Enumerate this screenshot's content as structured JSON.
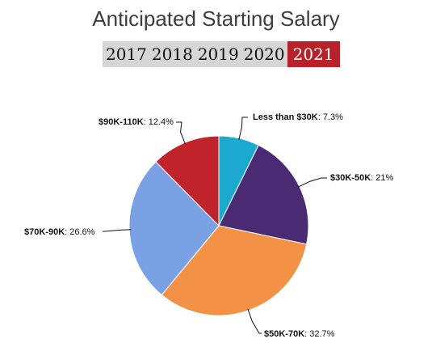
{
  "header": {
    "title": "Anticipated Starting Salary"
  },
  "year_tabs": [
    {
      "label": "2017",
      "active": false
    },
    {
      "label": "2018",
      "active": false
    },
    {
      "label": "2019",
      "active": false
    },
    {
      "label": "2020",
      "active": false
    },
    {
      "label": "2021",
      "active": true
    }
  ],
  "chart_data": {
    "type": "pie",
    "title": "Anticipated Starting Salary",
    "slices": [
      {
        "label": "Less than $30K",
        "value": 7.3,
        "value_text": "7.3%",
        "color": "#1ba9d0"
      },
      {
        "label": "$30K-50K",
        "value": 21,
        "value_text": "21%",
        "color": "#4a2a72"
      },
      {
        "label": "$50K-70K",
        "value": 32.7,
        "value_text": "32.7%",
        "color": "#f39147"
      },
      {
        "label": "$70K-90K",
        "value": 26.6,
        "value_text": "26.6%",
        "color": "#7aa1e4"
      },
      {
        "label": "$90K-110K",
        "value": 12.4,
        "value_text": "12.4%",
        "color": "#c1232a"
      }
    ],
    "legend": "none"
  }
}
